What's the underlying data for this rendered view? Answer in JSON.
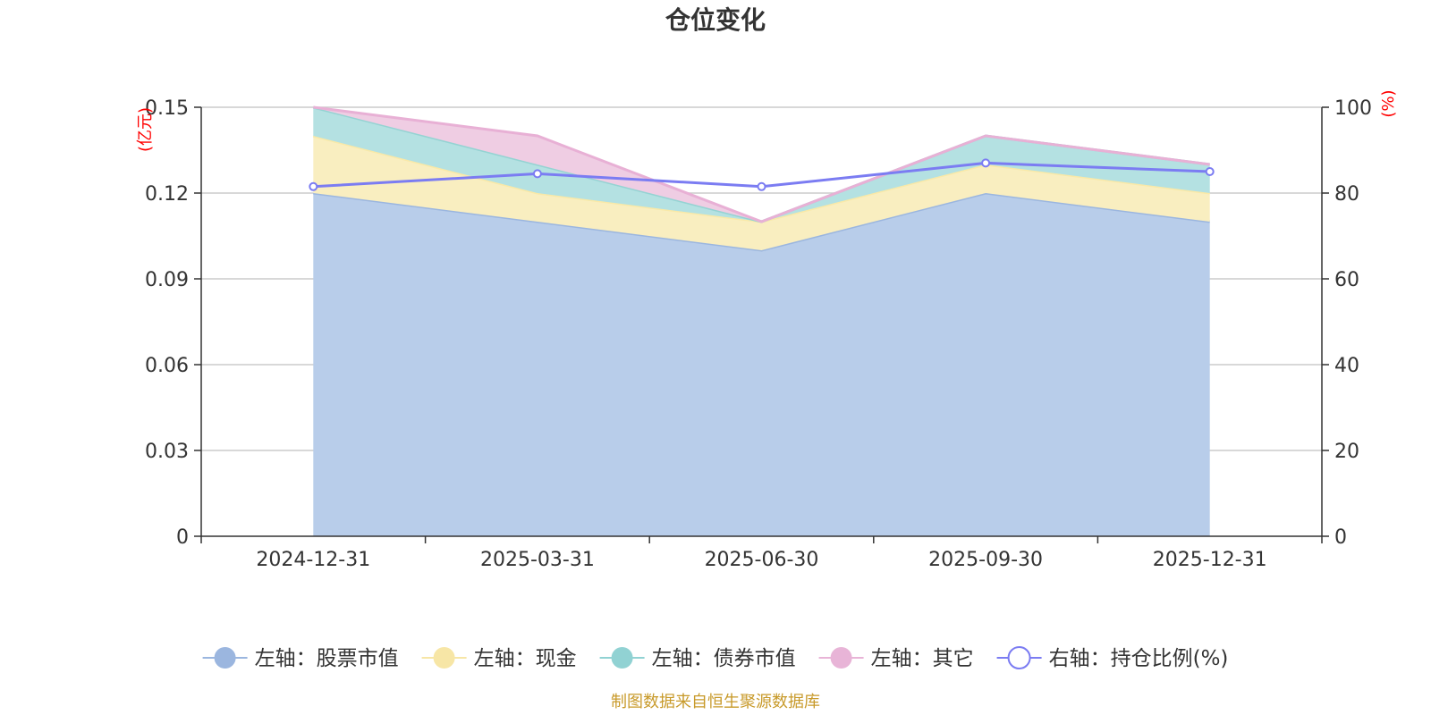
{
  "chart_data": {
    "type": "area",
    "title": "仓位变化",
    "categories": [
      "2024-12-31",
      "2025-03-31",
      "2025-06-30",
      "2025-09-30",
      "2025-12-31"
    ],
    "left_axis": {
      "unit": "(亿元)",
      "ylim": [
        0,
        0.15
      ],
      "ticks": [
        "0",
        "0.03",
        "0.06",
        "0.09",
        "0.12",
        "0.15"
      ]
    },
    "right_axis": {
      "unit": "(%)",
      "ylim": [
        0,
        100
      ],
      "ticks": [
        "0",
        "20",
        "40",
        "60",
        "80",
        "100"
      ]
    },
    "stacked_series": [
      {
        "name": "左轴：股票市值",
        "values": [
          0.12,
          0.11,
          0.1,
          0.12,
          0.11
        ],
        "fill": "#b8cdea",
        "stroke": "#9bb6df",
        "legend_color": "#9bb6df"
      },
      {
        "name": "左轴：现金",
        "values": [
          0.02,
          0.01,
          0.01,
          0.01,
          0.01
        ],
        "fill": "#f9eec0",
        "stroke": "#f9e9a8",
        "legend_color": "#f7e6a6"
      },
      {
        "name": "左轴：债券市值",
        "values": [
          0.01,
          0.01,
          0.0,
          0.01,
          0.01
        ],
        "fill": "#b4e1e2",
        "stroke": "#95d3d3",
        "legend_color": "#91d2d3"
      },
      {
        "name": "左轴：其它",
        "values": [
          0.0,
          0.01,
          0.0,
          0.0,
          0.0
        ],
        "fill": "#efcde3",
        "stroke": "#e8b0d5",
        "legend_color": "#e8b4d7"
      }
    ],
    "line_series": {
      "name": "右轴：持仓比例(%)",
      "values": [
        81.5,
        84.5,
        81.5,
        87.0,
        85.0
      ],
      "color": "#7b7cf2"
    },
    "grid": true,
    "legend_position": "bottom"
  },
  "source_note": "制图数据来自恒生聚源数据库"
}
